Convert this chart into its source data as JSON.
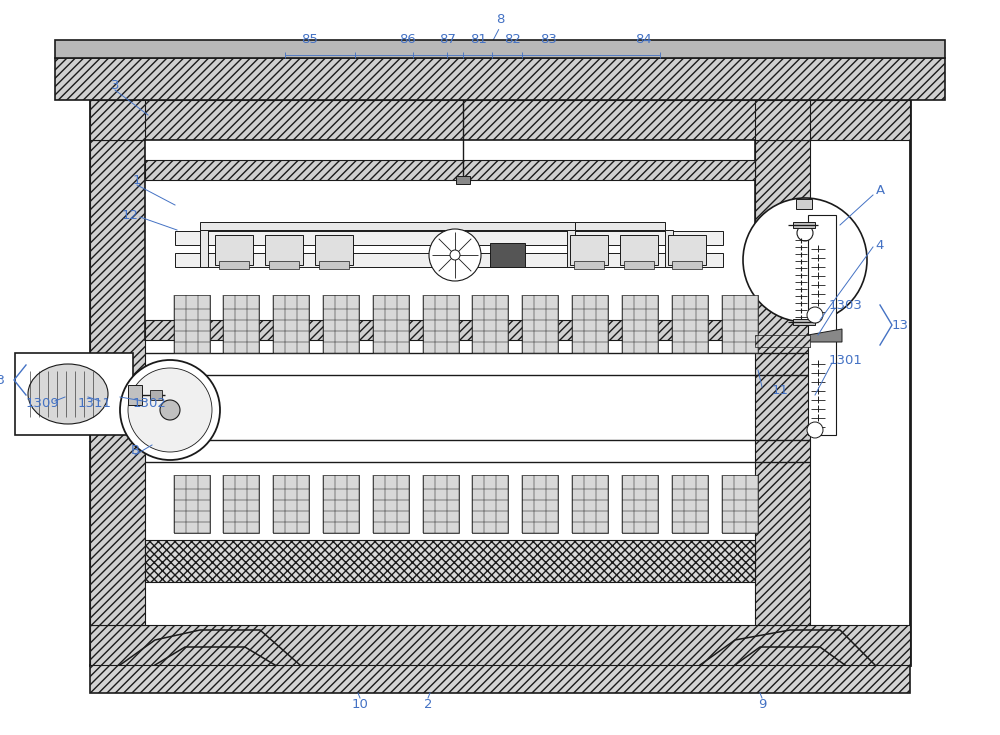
{
  "bg_color": "#ffffff",
  "line_color": "#1a1a1a",
  "label_color": "#4472c4",
  "fig_width": 10.0,
  "fig_height": 7.35,
  "dpi": 100
}
